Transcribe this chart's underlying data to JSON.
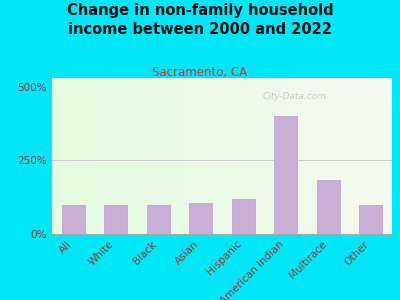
{
  "title": "Change in non-family household\nincome between 2000 and 2022",
  "subtitle": "Sacramento, CA",
  "categories": [
    "All",
    "White",
    "Black",
    "Asian",
    "Hispanic",
    "American Indian",
    "Multirace",
    "Other"
  ],
  "values": [
    100,
    100,
    98,
    105,
    120,
    400,
    185,
    98
  ],
  "bar_color": "#c9aed8",
  "bar_edge_color": "#b89ecc",
  "background_outer": "#00e8f8",
  "plot_bg_color": "#f4faee",
  "title_color": "#111111",
  "subtitle_color": "#cc3333",
  "tick_label_color": "#993333",
  "ytick_labels": [
    "0%",
    "250%",
    "500%"
  ],
  "ytick_values": [
    0,
    250,
    500
  ],
  "ylim": [
    0,
    530
  ],
  "watermark": "City-Data.com",
  "title_fontsize": 10.5,
  "subtitle_fontsize": 8.5,
  "tick_fontsize": 7.5
}
